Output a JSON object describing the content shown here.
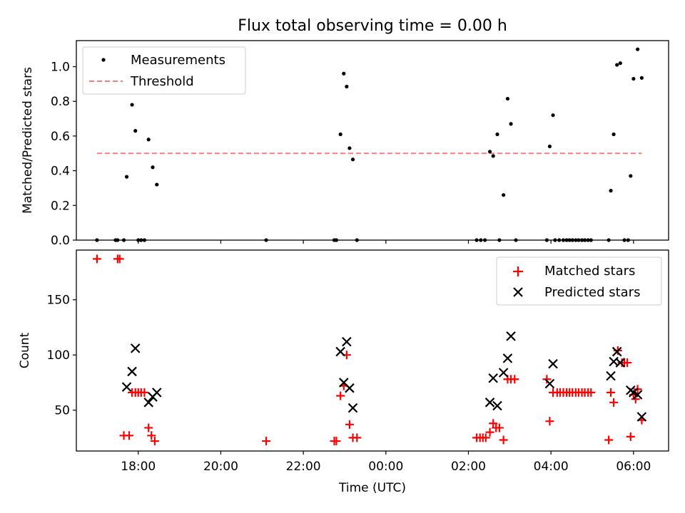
{
  "chart_data": [
    {
      "type": "scatter",
      "title": "Flux total observing time = 0.00 h",
      "ylabel": "Matched/Predicted stars",
      "ylim": [
        0,
        1.15
      ],
      "xlim_hours": [
        16.5,
        30.85
      ],
      "yticks": [
        0.0,
        0.2,
        0.4,
        0.6,
        0.8,
        1.0
      ],
      "ytick_labels": [
        "0.0",
        "0.2",
        "0.4",
        "0.6",
        "0.8",
        "1.0"
      ],
      "legend": {
        "placement": "upper-left",
        "entries": [
          "Measurements",
          "Threshold"
        ]
      },
      "threshold": {
        "name": "Threshold",
        "value": 0.5,
        "x_range_hours": [
          17.0,
          30.2
        ],
        "color": "#ff7b7b"
      },
      "series": [
        {
          "name": "Measurements",
          "color": "#000000",
          "points": [
            [
              17.0,
              0
            ],
            [
              17.45,
              0
            ],
            [
              17.5,
              0
            ],
            [
              17.65,
              0
            ],
            [
              17.72,
              0.365
            ],
            [
              17.85,
              0.78
            ],
            [
              17.93,
              0.63
            ],
            [
              18.0,
              0
            ],
            [
              18.07,
              0
            ],
            [
              18.15,
              0
            ],
            [
              18.25,
              0.58
            ],
            [
              18.35,
              0.42
            ],
            [
              18.45,
              0.32
            ],
            [
              21.1,
              0
            ],
            [
              22.75,
              0
            ],
            [
              22.8,
              0
            ],
            [
              22.9,
              0.61
            ],
            [
              22.98,
              0.96
            ],
            [
              23.05,
              0.885
            ],
            [
              23.12,
              0.53
            ],
            [
              23.2,
              0.465
            ],
            [
              23.3,
              0
            ],
            [
              26.2,
              0
            ],
            [
              26.3,
              0
            ],
            [
              26.4,
              0
            ],
            [
              26.52,
              0.51
            ],
            [
              26.6,
              0.485
            ],
            [
              26.7,
              0.61
            ],
            [
              26.75,
              0
            ],
            [
              26.85,
              0.26
            ],
            [
              26.95,
              0.815
            ],
            [
              27.03,
              0.67
            ],
            [
              27.15,
              0
            ],
            [
              27.9,
              0
            ],
            [
              27.97,
              0.54
            ],
            [
              28.05,
              0.72
            ],
            [
              28.1,
              0
            ],
            [
              28.2,
              0
            ],
            [
              28.3,
              0
            ],
            [
              28.38,
              0
            ],
            [
              28.45,
              0
            ],
            [
              28.52,
              0
            ],
            [
              28.6,
              0
            ],
            [
              28.67,
              0
            ],
            [
              28.75,
              0
            ],
            [
              28.82,
              0
            ],
            [
              28.9,
              0
            ],
            [
              28.97,
              0
            ],
            [
              29.4,
              0
            ],
            [
              29.45,
              0.285
            ],
            [
              29.52,
              0.61
            ],
            [
              29.6,
              1.01
            ],
            [
              29.68,
              1.02
            ],
            [
              29.78,
              0
            ],
            [
              29.87,
              0
            ],
            [
              29.93,
              0.37
            ],
            [
              30.0,
              0.93
            ],
            [
              30.1,
              1.1
            ],
            [
              30.2,
              0.935
            ]
          ]
        }
      ]
    },
    {
      "type": "scatter",
      "xlabel": "Time (UTC)",
      "ylabel": "Count",
      "ylim": [
        13,
        195
      ],
      "xlim_hours": [
        16.5,
        30.85
      ],
      "yticks": [
        50,
        100,
        150
      ],
      "ytick_labels": [
        "50",
        "100",
        "150"
      ],
      "xticks_hours": [
        18,
        20,
        22,
        24,
        26,
        28,
        30
      ],
      "xtick_labels": [
        "18:00",
        "20:00",
        "22:00",
        "00:00",
        "02:00",
        "04:00",
        "06:00"
      ],
      "legend": {
        "placement": "upper-right",
        "entries": [
          "Matched stars",
          "Predicted stars"
        ]
      },
      "series": [
        {
          "name": "Matched stars",
          "marker": "plus",
          "color": "#ff0000",
          "points": [
            [
              17.0,
              187
            ],
            [
              17.5,
              187
            ],
            [
              17.55,
              187
            ],
            [
              17.65,
              27
            ],
            [
              17.78,
              27
            ],
            [
              17.85,
              66
            ],
            [
              17.93,
              66
            ],
            [
              18.0,
              66
            ],
            [
              18.07,
              66
            ],
            [
              18.15,
              66
            ],
            [
              18.25,
              34
            ],
            [
              18.32,
              27
            ],
            [
              18.4,
              22
            ],
            [
              21.1,
              22
            ],
            [
              22.75,
              22
            ],
            [
              22.8,
              22
            ],
            [
              22.9,
              63
            ],
            [
              22.98,
              72
            ],
            [
              23.05,
              100
            ],
            [
              23.12,
              37
            ],
            [
              23.2,
              25
            ],
            [
              23.3,
              25
            ],
            [
              26.2,
              25
            ],
            [
              26.28,
              25
            ],
            [
              26.35,
              25
            ],
            [
              26.42,
              25
            ],
            [
              26.52,
              30
            ],
            [
              26.6,
              38
            ],
            [
              26.67,
              34
            ],
            [
              26.75,
              34
            ],
            [
              26.85,
              23
            ],
            [
              26.95,
              78
            ],
            [
              27.03,
              78
            ],
            [
              27.12,
              78
            ],
            [
              27.9,
              78
            ],
            [
              27.97,
              40
            ],
            [
              28.05,
              66
            ],
            [
              28.15,
              66
            ],
            [
              28.22,
              66
            ],
            [
              28.3,
              66
            ],
            [
              28.38,
              66
            ],
            [
              28.45,
              66
            ],
            [
              28.52,
              66
            ],
            [
              28.6,
              66
            ],
            [
              28.67,
              66
            ],
            [
              28.75,
              66
            ],
            [
              28.82,
              66
            ],
            [
              28.9,
              66
            ],
            [
              28.97,
              66
            ],
            [
              29.4,
              23
            ],
            [
              29.45,
              66
            ],
            [
              29.52,
              57
            ],
            [
              29.62,
              104
            ],
            [
              29.72,
              93
            ],
            [
              29.78,
              93
            ],
            [
              29.85,
              93
            ],
            [
              29.93,
              26
            ],
            [
              30.0,
              64
            ],
            [
              30.05,
              60
            ],
            [
              30.1,
              69
            ],
            [
              30.2,
              41
            ]
          ]
        },
        {
          "name": "Predicted stars",
          "marker": "x",
          "color": "#000000",
          "points": [
            [
              17.72,
              71
            ],
            [
              17.85,
              85
            ],
            [
              17.93,
              106
            ],
            [
              18.25,
              57
            ],
            [
              18.35,
              62
            ],
            [
              18.45,
              66
            ],
            [
              22.9,
              103
            ],
            [
              22.98,
              75
            ],
            [
              23.05,
              112
            ],
            [
              23.12,
              70
            ],
            [
              23.2,
              52
            ],
            [
              26.52,
              57
            ],
            [
              26.6,
              79
            ],
            [
              26.7,
              54
            ],
            [
              26.85,
              84
            ],
            [
              26.95,
              97
            ],
            [
              27.03,
              117
            ],
            [
              27.97,
              74
            ],
            [
              28.05,
              92
            ],
            [
              29.45,
              81
            ],
            [
              29.52,
              94
            ],
            [
              29.6,
              103
            ],
            [
              29.68,
              93
            ],
            [
              29.93,
              68
            ],
            [
              30.0,
              66
            ],
            [
              30.1,
              64
            ],
            [
              30.2,
              44
            ]
          ]
        }
      ]
    }
  ]
}
